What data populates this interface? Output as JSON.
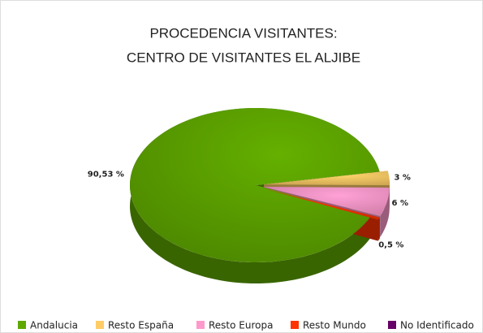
{
  "chart_data": {
    "type": "pie3d",
    "title": "PROCEDENCIA VISITANTES:",
    "subtitle": "CENTRO DE VISITANTES EL ALJIBE",
    "categories": [
      "Andalucia",
      "Resto España",
      "Resto Europa",
      "Resto Mundo",
      "No Identificado"
    ],
    "values": [
      90.53,
      3,
      6,
      0.5,
      0
    ],
    "value_labels": [
      "90,53 %",
      "3 %",
      "6 %",
      "0,5 %",
      null
    ],
    "colors": [
      "#5fa800",
      "#ffcc66",
      "#ff99cc",
      "#ff3300",
      "#660066"
    ],
    "legend": "bottom"
  }
}
